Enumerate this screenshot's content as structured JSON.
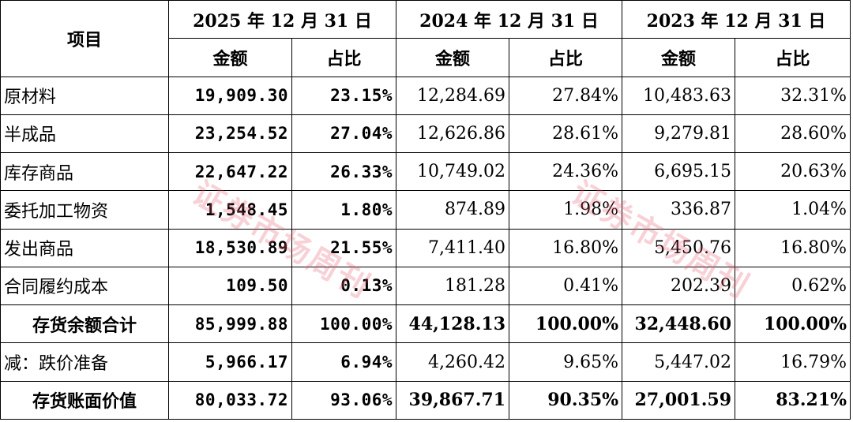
{
  "header": {
    "item_label": "项目",
    "periods": [
      "2025 年 12 月 31 日",
      "2024 年 12 月 31 日",
      "2023 年 12 月 31 日"
    ],
    "amount_label": "金额",
    "ratio_label": "占比"
  },
  "rows": [
    {
      "label": "原材料",
      "v": [
        "19,909.30",
        "23.15%",
        "12,284.69",
        "27.84%",
        "10,483.63",
        "32.31%"
      ]
    },
    {
      "label": "半成品",
      "v": [
        "23,254.52",
        "27.04%",
        "12,626.86",
        "28.61%",
        "9,279.81",
        "28.60%"
      ]
    },
    {
      "label": "库存商品",
      "v": [
        "22,647.22",
        "26.33%",
        "10,749.02",
        "24.36%",
        "6,695.15",
        "20.63%"
      ]
    },
    {
      "label": "委托加工物资",
      "v": [
        "1,548.45",
        "1.80%",
        "874.89",
        "1.98%",
        "336.87",
        "1.04%"
      ]
    },
    {
      "label": "发出商品",
      "v": [
        "18,530.89",
        "21.55%",
        "7,411.40",
        "16.80%",
        "5,450.76",
        "16.80%"
      ]
    },
    {
      "label": "合同履约成本",
      "v": [
        "109.50",
        "0.13%",
        "181.28",
        "0.41%",
        "202.39",
        "0.62%"
      ]
    },
    {
      "label": "存货余额合计",
      "v": [
        "85,999.88",
        "100.00%",
        "44,128.13",
        "100.00%",
        "32,448.60",
        "100.00%"
      ]
    },
    {
      "label": "减：跌价准备",
      "v": [
        "5,966.17",
        "6.94%",
        "4,260.42",
        "9.65%",
        "5,447.02",
        "16.79%"
      ]
    },
    {
      "label": "存货账面价值",
      "v": [
        "80,033.72",
        "93.06%",
        "39,867.71",
        "90.35%",
        "27,001.59",
        "83.21%"
      ]
    }
  ],
  "watermark": "证券市场周刊"
}
